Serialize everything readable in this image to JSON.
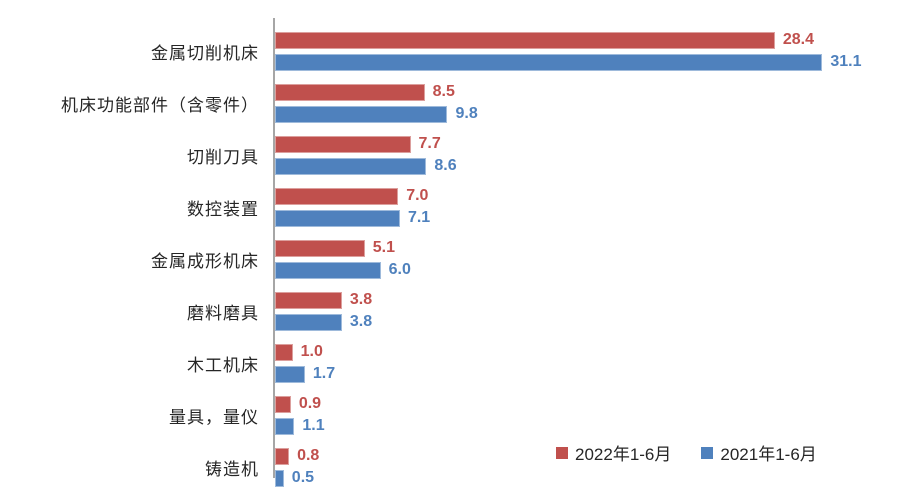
{
  "chart_data": {
    "type": "bar",
    "orientation": "horizontal",
    "title": "",
    "xlabel": "",
    "ylabel": "",
    "xlim": [
      0,
      35
    ],
    "grid": false,
    "legend_position": "bottom-right",
    "axis_color": "#a6a6a6",
    "value_label_decimals": 1,
    "categories": [
      "金属切削机床",
      "机床功能部件（含零件）",
      "切削刀具",
      "数控装置",
      "金属成形机床",
      "磨料磨具",
      "木工机床",
      "量具，量仪",
      "铸造机"
    ],
    "series": [
      {
        "name": "2022年1-6月",
        "color": "#c0504d",
        "values": [
          28.4,
          8.5,
          7.7,
          7.0,
          5.1,
          3.8,
          1.0,
          0.9,
          0.8
        ]
      },
      {
        "name": "2021年1-6月",
        "color": "#4f81bd",
        "values": [
          31.1,
          9.8,
          8.6,
          7.1,
          6.0,
          3.8,
          1.7,
          1.1,
          0.5
        ]
      }
    ]
  }
}
